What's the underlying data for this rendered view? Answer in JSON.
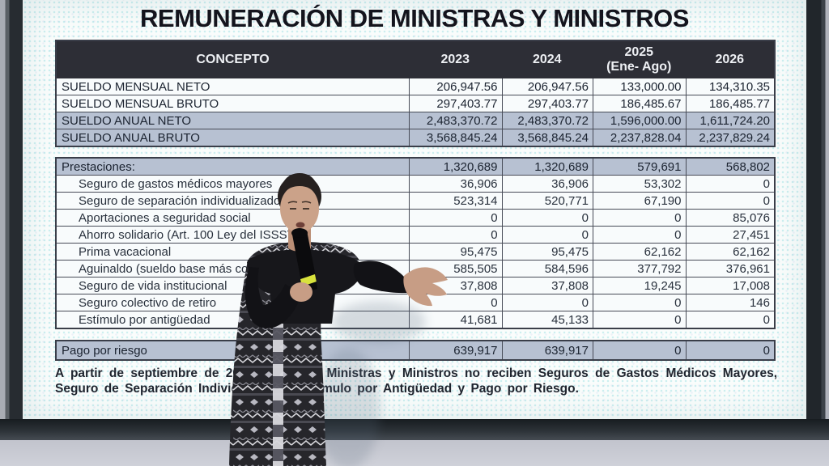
{
  "slide": {
    "title": "REMUNERACIÓN DE MINISTRAS Y MINISTROS",
    "footnote": "A partir de septiembre de 2025, las y los Ministras y Ministros no reciben Seguros de Gastos Médicos Mayores, Seguro de Separación Individualizado, Estímulo por Antigüedad y Pago por Riesgo."
  },
  "table": {
    "headers": [
      "CONCEPTO",
      "2023",
      "2024",
      "2025\n(Ene- Ago)",
      "2026"
    ],
    "salary_rows": [
      {
        "label": "SUELDO MENSUAL NETO",
        "values": [
          "206,947.56",
          "206,947.56",
          "133,000.00",
          "134,310.35"
        ],
        "bold": true
      },
      {
        "label": "SUELDO MENSUAL BRUTO",
        "values": [
          "297,403.77",
          "297,403.77",
          "186,485.67",
          "186,485.77"
        ],
        "bold": true
      },
      {
        "label": "SUELDO ANUAL NETO",
        "values": [
          "2,483,370.72",
          "2,483,370.72",
          "1,596,000.00",
          "1,611,724.20"
        ],
        "bold": true,
        "shaded": true
      },
      {
        "label": "SUELDO ANUAL BRUTO",
        "values": [
          "3,568,845.24",
          "3,568,845.24",
          "2,237,828.04",
          "2,237,829.24"
        ],
        "bold": true,
        "shaded": true
      }
    ],
    "benefit_rows": [
      {
        "label": "Prestaciones:",
        "values": [
          "1,320,689",
          "1,320,689",
          "579,691",
          "568,802"
        ],
        "bold": true,
        "shaded": true
      },
      {
        "label": "Seguro de gastos médicos mayores",
        "values": [
          "36,906",
          "36,906",
          "53,302",
          "0"
        ],
        "indent": true
      },
      {
        "label": "Seguro de separación individualizado",
        "values": [
          "523,314",
          "520,771",
          "67,190",
          "0"
        ],
        "indent": true
      },
      {
        "label": "Aportaciones a seguridad social",
        "values": [
          "0",
          "0",
          "0",
          "85,076"
        ],
        "indent": true
      },
      {
        "label": "Ahorro solidario (Art. 100 Ley del ISSSTE)",
        "values": [
          "0",
          "0",
          "0",
          "27,451"
        ],
        "indent": true
      },
      {
        "label": "Prima vacacional",
        "values": [
          "95,475",
          "95,475",
          "62,162",
          "62,162"
        ],
        "indent": true
      },
      {
        "label": "Aguinaldo (sueldo base más compensación garantizada)",
        "values": [
          "585,505",
          "584,596",
          "377,792",
          "376,961"
        ],
        "indent": true
      },
      {
        "label": "Seguro de vida institucional",
        "values": [
          "37,808",
          "37,808",
          "19,245",
          "17,008"
        ],
        "indent": true
      },
      {
        "label": "Seguro colectivo de retiro",
        "values": [
          "0",
          "0",
          "0",
          "146"
        ],
        "indent": true
      },
      {
        "label": "Estímulo por antigüedad",
        "values": [
          "41,681",
          "45,133",
          "0",
          "0"
        ],
        "indent": true
      }
    ],
    "risk_rows": [
      {
        "label": "Pago por riesgo",
        "values": [
          "639,917",
          "639,917",
          "0",
          "0"
        ],
        "bold": true,
        "shaded": true
      }
    ]
  },
  "chart_data": {
    "type": "table",
    "title": "REMUNERACIÓN DE MINISTRAS Y MINISTROS",
    "columns": [
      "CONCEPTO",
      "2023",
      "2024",
      "2025 (Ene- Ago)",
      "2026"
    ],
    "rows": [
      [
        "SUELDO MENSUAL NETO",
        206947.56,
        206947.56,
        133000.0,
        134310.35
      ],
      [
        "SUELDO MENSUAL BRUTO",
        297403.77,
        297403.77,
        186485.67,
        186485.77
      ],
      [
        "SUELDO ANUAL NETO",
        2483370.72,
        2483370.72,
        1596000.0,
        1611724.2
      ],
      [
        "SUELDO ANUAL BRUTO",
        3568845.24,
        3568845.24,
        2237828.04,
        2237829.24
      ],
      [
        "Prestaciones:",
        1320689,
        1320689,
        579691,
        568802
      ],
      [
        "Seguro de gastos médicos mayores",
        36906,
        36906,
        53302,
        0
      ],
      [
        "Seguro de separación individualizado",
        523314,
        520771,
        67190,
        0
      ],
      [
        "Aportaciones a seguridad social",
        0,
        0,
        0,
        85076
      ],
      [
        "Ahorro solidario (Art. 100 Ley del ISSSTE)",
        0,
        0,
        0,
        27451
      ],
      [
        "Prima vacacional",
        95475,
        95475,
        62162,
        62162
      ],
      [
        "Aguinaldo (sueldo base más compensación garantizada)",
        585505,
        584596,
        377792,
        376961
      ],
      [
        "Seguro de vida institucional",
        37808,
        37808,
        19245,
        17008
      ],
      [
        "Seguro colectivo de retiro",
        0,
        0,
        0,
        146
      ],
      [
        "Estímulo por antigüedad",
        41681,
        45133,
        0,
        0
      ],
      [
        "Pago por riesgo",
        639917,
        639917,
        0,
        0
      ]
    ]
  },
  "colors": {
    "header_bg": "#2d2e36",
    "shaded_row": "#b7c1d2",
    "table_border": "#3a3e49",
    "title_text": "#14141d",
    "mic_band": "#d8e23c"
  }
}
